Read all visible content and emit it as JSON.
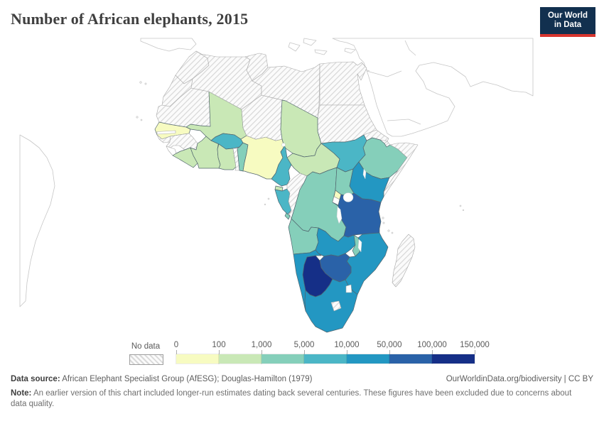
{
  "header": {
    "title": "Number of African elephants, 2015",
    "logo_line1": "Our World",
    "logo_line2": "in Data",
    "logo_bg": "#12304f",
    "logo_accent": "#d8352e"
  },
  "legend": {
    "no_data_label": "No data",
    "tick_labels": [
      "0",
      "100",
      "1,000",
      "5,000",
      "10,000",
      "50,000",
      "100,000",
      "150,000"
    ]
  },
  "footer": {
    "source_label": "Data source:",
    "source_text": " African Elephant Specialist Group (AfESG); Douglas-Hamilton (1979)",
    "link_text": "OurWorldinData.org/biodiversity | CC BY",
    "note_label": "Note:",
    "note_text": " An earlier version of this chart included longer-run estimates dating back several centuries. These figures have been excluded due to concerns about data quality."
  },
  "chart_data": {
    "type": "choropleth_map",
    "title": "Number of African elephants, 2015",
    "region": "Africa",
    "legend_position": "bottom",
    "no_data_style": "diagonal-hatch",
    "bins": [
      {
        "range": "0-100",
        "color": "#f7fbc1"
      },
      {
        "range": "100-1,000",
        "color": "#c9e8b6"
      },
      {
        "range": "1,000-5,000",
        "color": "#85cfba"
      },
      {
        "range": "5,000-10,000",
        "color": "#4bb6c6"
      },
      {
        "range": "10,000-50,000",
        "color": "#2397c2"
      },
      {
        "range": "50,000-100,000",
        "color": "#2a62a8"
      },
      {
        "range": "100,000-150,000",
        "color": "#152f87"
      }
    ],
    "countries": [
      {
        "name": "Morocco",
        "bin": "no-data"
      },
      {
        "name": "Western Sahara",
        "bin": "no-data"
      },
      {
        "name": "Algeria",
        "bin": "no-data"
      },
      {
        "name": "Tunisia",
        "bin": "no-data"
      },
      {
        "name": "Libya",
        "bin": "no-data"
      },
      {
        "name": "Egypt",
        "bin": "no-data"
      },
      {
        "name": "Sudan",
        "bin": "no-data"
      },
      {
        "name": "Eritrea",
        "bin": "no-data"
      },
      {
        "name": "Djibouti",
        "bin": "no-data"
      },
      {
        "name": "Somalia",
        "bin": "no-data"
      },
      {
        "name": "Niger",
        "bin": "no-data"
      },
      {
        "name": "Mauritania",
        "bin": "no-data"
      },
      {
        "name": "Guinea-Bissau",
        "bin": "no-data"
      },
      {
        "name": "Guinea",
        "bin": "no-data"
      },
      {
        "name": "Togo",
        "bin": "no-data"
      },
      {
        "name": "Congo",
        "bin": "no-data"
      },
      {
        "name": "Madagascar",
        "bin": "no-data"
      },
      {
        "name": "Lesotho",
        "bin": "no-data"
      },
      {
        "name": "Gambia",
        "bin": "blank"
      },
      {
        "name": "Sierra Leone",
        "bin": "blank"
      },
      {
        "name": "Burundi",
        "bin": "blank"
      },
      {
        "name": "Eswatini",
        "bin": "blank"
      },
      {
        "name": "Senegal",
        "bin": 0
      },
      {
        "name": "Nigeria",
        "bin": 0
      },
      {
        "name": "Rwanda",
        "bin": 0
      },
      {
        "name": "Mali",
        "bin": 1
      },
      {
        "name": "Chad",
        "bin": 1
      },
      {
        "name": "Central African Republic",
        "bin": 1
      },
      {
        "name": "Cote d'Ivoire",
        "bin": 1
      },
      {
        "name": "Liberia",
        "bin": 1
      },
      {
        "name": "Ghana",
        "bin": 1
      },
      {
        "name": "Equatorial Guinea",
        "bin": 1
      },
      {
        "name": "Benin",
        "bin": 2
      },
      {
        "name": "Ethiopia",
        "bin": 2
      },
      {
        "name": "Uganda",
        "bin": 2
      },
      {
        "name": "Democratic Republic of Congo",
        "bin": 2
      },
      {
        "name": "Angola",
        "bin": 2
      },
      {
        "name": "Malawi",
        "bin": 2
      },
      {
        "name": "Burkina Faso",
        "bin": 3
      },
      {
        "name": "Cameroon",
        "bin": 3
      },
      {
        "name": "Gabon",
        "bin": 3
      },
      {
        "name": "South Sudan",
        "bin": 3
      },
      {
        "name": "Kenya",
        "bin": 4
      },
      {
        "name": "Zambia",
        "bin": 4
      },
      {
        "name": "Mozambique",
        "bin": 4
      },
      {
        "name": "Namibia",
        "bin": 4
      },
      {
        "name": "South Africa",
        "bin": 4
      },
      {
        "name": "Tanzania",
        "bin": 5
      },
      {
        "name": "Zimbabwe",
        "bin": 5
      },
      {
        "name": "Botswana",
        "bin": 6
      }
    ]
  }
}
